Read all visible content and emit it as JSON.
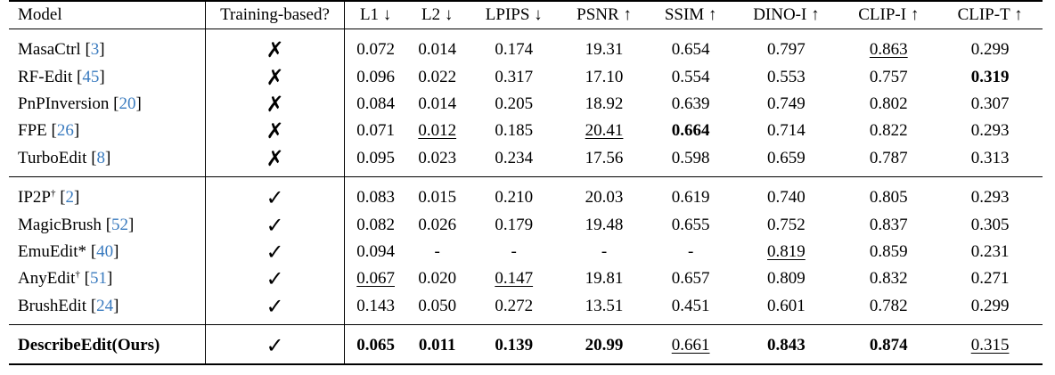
{
  "columns": [
    "Model",
    "Training-based?",
    "L1 ↓",
    "L2 ↓",
    "LPIPS ↓",
    "PSNR ↑",
    "SSIM ↑",
    "DINO-I ↑",
    "CLIP-I ↑",
    "CLIP-T ↑"
  ],
  "marks": {
    "no": "✗",
    "yes": "✓"
  },
  "rows": [
    {
      "model": "MasaCtrl",
      "sup": "",
      "cite": "3",
      "train": "no",
      "vals": [
        "0.072",
        "0.014",
        "0.174",
        "19.31",
        "0.654",
        "0.797",
        "0.863",
        "0.299"
      ],
      "bold": [],
      "underline": [
        6
      ]
    },
    {
      "model": "RF-Edit",
      "sup": "",
      "cite": "45",
      "train": "no",
      "vals": [
        "0.096",
        "0.022",
        "0.317",
        "17.10",
        "0.554",
        "0.553",
        "0.757",
        "0.319"
      ],
      "bold": [
        7
      ],
      "underline": []
    },
    {
      "model": "PnPInversion",
      "sup": "",
      "cite": "20",
      "train": "no",
      "vals": [
        "0.084",
        "0.014",
        "0.205",
        "18.92",
        "0.639",
        "0.749",
        "0.802",
        "0.307"
      ],
      "bold": [],
      "underline": []
    },
    {
      "model": "FPE",
      "sup": "",
      "cite": "26",
      "train": "no",
      "vals": [
        "0.071",
        "0.012",
        "0.185",
        "20.41",
        "0.664",
        "0.714",
        "0.822",
        "0.293"
      ],
      "bold": [
        4
      ],
      "underline": [
        1,
        3
      ]
    },
    {
      "model": "TurboEdit",
      "sup": "",
      "cite": "8",
      "train": "no",
      "vals": [
        "0.095",
        "0.023",
        "0.234",
        "17.56",
        "0.598",
        "0.659",
        "0.787",
        "0.313"
      ],
      "bold": [],
      "underline": []
    },
    {
      "model": "IP2P",
      "sup": "†",
      "cite": "2",
      "train": "yes",
      "vals": [
        "0.083",
        "0.015",
        "0.210",
        "20.03",
        "0.619",
        "0.740",
        "0.805",
        "0.293"
      ],
      "bold": [],
      "underline": []
    },
    {
      "model": "MagicBrush",
      "sup": "",
      "cite": "52",
      "train": "yes",
      "vals": [
        "0.082",
        "0.026",
        "0.179",
        "19.48",
        "0.655",
        "0.752",
        "0.837",
        "0.305"
      ],
      "bold": [],
      "underline": []
    },
    {
      "model": "EmuEdit*",
      "sup": "",
      "cite": "40",
      "train": "yes",
      "vals": [
        "0.094",
        "-",
        "-",
        "-",
        "-",
        "0.819",
        "0.859",
        "0.231"
      ],
      "bold": [],
      "underline": [
        5
      ]
    },
    {
      "model": "AnyEdit",
      "sup": "†",
      "cite": "51",
      "train": "yes",
      "vals": [
        "0.067",
        "0.020",
        "0.147",
        "19.81",
        "0.657",
        "0.809",
        "0.832",
        "0.271"
      ],
      "bold": [],
      "underline": [
        0,
        2
      ]
    },
    {
      "model": "BrushEdit",
      "sup": "",
      "cite": "24",
      "train": "yes",
      "vals": [
        "0.143",
        "0.050",
        "0.272",
        "13.51",
        "0.451",
        "0.601",
        "0.782",
        "0.299"
      ],
      "bold": [],
      "underline": []
    },
    {
      "model": "DescribeEdit(Ours)",
      "sup": "",
      "cite": "",
      "train": "yes",
      "vals": [
        "0.065",
        "0.011",
        "0.139",
        "20.99",
        "0.661",
        "0.843",
        "0.874",
        "0.315"
      ],
      "bold": [
        0,
        1,
        2,
        3,
        5,
        6
      ],
      "underline": [
        4,
        7
      ],
      "bold_model": true
    }
  ]
}
